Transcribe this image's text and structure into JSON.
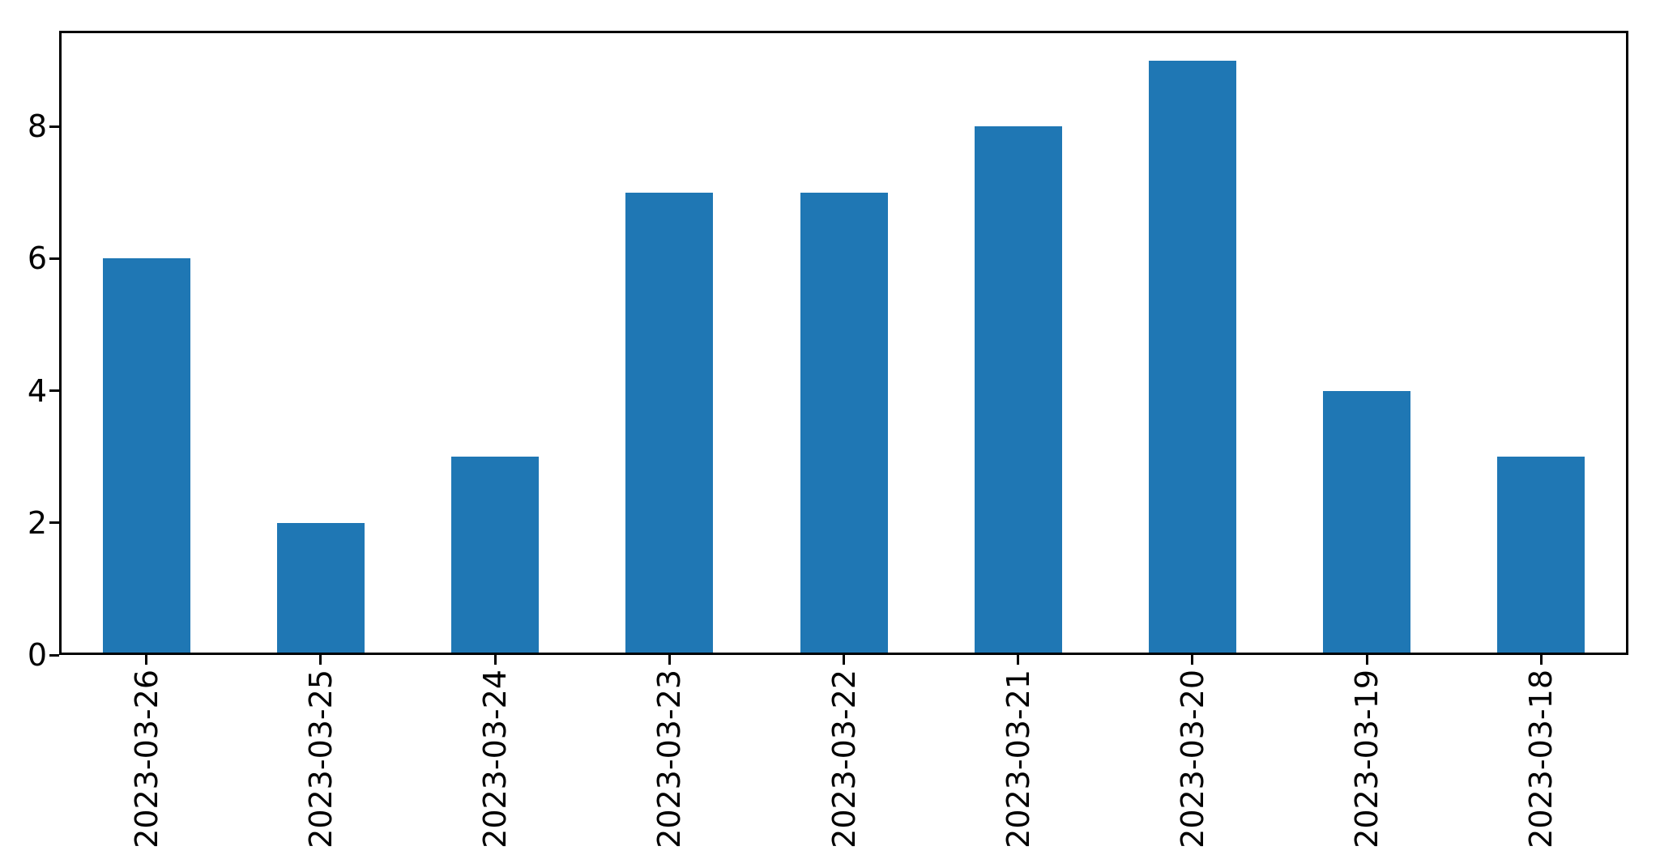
{
  "chart_data": {
    "type": "bar",
    "title": "",
    "xlabel": "",
    "ylabel": "",
    "categories": [
      "2023-03-26",
      "2023-03-25",
      "2023-03-24",
      "2023-03-23",
      "2023-03-22",
      "2023-03-21",
      "2023-03-20",
      "2023-03-19",
      "2023-03-18"
    ],
    "values": [
      6,
      2,
      3,
      7,
      7,
      8,
      9,
      4,
      3
    ],
    "yticks": [
      0,
      2,
      4,
      6,
      8
    ],
    "ylim": [
      0,
      9.45
    ],
    "x_tick_rotation_deg": 90,
    "grid": false,
    "legend": null,
    "bar_color": "#1f77b4",
    "axis_color": "#000000",
    "background_color": "#ffffff"
  }
}
